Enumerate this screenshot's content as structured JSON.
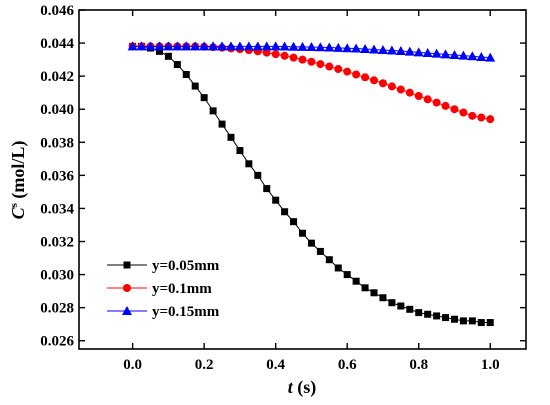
{
  "chart_data": {
    "type": "line",
    "xlabel": {
      "var": "t",
      "unit": " (s)"
    },
    "ylabel": {
      "var": "C",
      "sup": "s",
      "unit": " (mol/L)"
    },
    "xlim": [
      -0.15,
      1.1
    ],
    "ylim": [
      0.0255,
      0.046
    ],
    "x_ticks": [
      "0.0",
      "0.2",
      "0.4",
      "0.6",
      "0.8",
      "1.0"
    ],
    "y_ticks": [
      "0.026",
      "0.028",
      "0.030",
      "0.032",
      "0.034",
      "0.036",
      "0.038",
      "0.040",
      "0.042",
      "0.044",
      "0.046"
    ],
    "grid": false,
    "legend_position": "bottom-left",
    "series": [
      {
        "name": "y=0.05mm",
        "color": "#000000",
        "marker": "square",
        "x": [
          0.0,
          0.025,
          0.05,
          0.075,
          0.1,
          0.125,
          0.15,
          0.175,
          0.2,
          0.225,
          0.25,
          0.275,
          0.3,
          0.325,
          0.35,
          0.375,
          0.4,
          0.425,
          0.45,
          0.475,
          0.5,
          0.525,
          0.55,
          0.575,
          0.6,
          0.625,
          0.65,
          0.675,
          0.7,
          0.725,
          0.75,
          0.775,
          0.8,
          0.825,
          0.85,
          0.875,
          0.9,
          0.925,
          0.95,
          0.975,
          1.0
        ],
        "y": [
          0.0438,
          0.0438,
          0.0437,
          0.0435,
          0.0432,
          0.0427,
          0.0421,
          0.0414,
          0.0407,
          0.0399,
          0.0391,
          0.0383,
          0.0375,
          0.0367,
          0.036,
          0.0352,
          0.0345,
          0.0338,
          0.0332,
          0.0325,
          0.0319,
          0.0314,
          0.0309,
          0.0304,
          0.03,
          0.0296,
          0.0292,
          0.0289,
          0.0286,
          0.0283,
          0.0281,
          0.0279,
          0.0277,
          0.0276,
          0.0275,
          0.0274,
          0.0273,
          0.0272,
          0.0272,
          0.0271,
          0.0271
        ]
      },
      {
        "name": "y=0.1mm",
        "color": "#ff0000",
        "marker": "circle",
        "x": [
          0.0,
          0.025,
          0.05,
          0.075,
          0.1,
          0.125,
          0.15,
          0.175,
          0.2,
          0.225,
          0.25,
          0.275,
          0.3,
          0.325,
          0.35,
          0.375,
          0.4,
          0.425,
          0.45,
          0.475,
          0.5,
          0.525,
          0.55,
          0.575,
          0.6,
          0.625,
          0.65,
          0.675,
          0.7,
          0.725,
          0.75,
          0.775,
          0.8,
          0.825,
          0.85,
          0.875,
          0.9,
          0.925,
          0.95,
          0.975,
          1.0
        ],
        "y": [
          0.0438,
          0.0438,
          0.0438,
          0.0438,
          0.0438,
          0.0438,
          0.0438,
          0.0438,
          0.04378,
          0.04375,
          0.04372,
          0.04368,
          0.04363,
          0.04357,
          0.0435,
          0.04342,
          0.04333,
          0.04323,
          0.04312,
          0.043,
          0.04287,
          0.04273,
          0.04258,
          0.04243,
          0.04227,
          0.0421,
          0.04193,
          0.04175,
          0.04157,
          0.04138,
          0.04119,
          0.041,
          0.0408,
          0.0406,
          0.0404,
          0.0402,
          0.04,
          0.0398,
          0.0396,
          0.0395,
          0.0394
        ]
      },
      {
        "name": "y=0.15mm",
        "color": "#0000ff",
        "marker": "triangle",
        "x": [
          0.0,
          0.025,
          0.05,
          0.075,
          0.1,
          0.125,
          0.15,
          0.175,
          0.2,
          0.225,
          0.25,
          0.275,
          0.3,
          0.325,
          0.35,
          0.375,
          0.4,
          0.425,
          0.45,
          0.475,
          0.5,
          0.525,
          0.55,
          0.575,
          0.6,
          0.625,
          0.65,
          0.675,
          0.7,
          0.725,
          0.75,
          0.775,
          0.8,
          0.825,
          0.85,
          0.875,
          0.9,
          0.925,
          0.95,
          0.975,
          1.0
        ],
        "y": [
          0.0438,
          0.0438,
          0.0438,
          0.0438,
          0.0438,
          0.0438,
          0.0438,
          0.0438,
          0.0438,
          0.0438,
          0.0438,
          0.0438,
          0.0438,
          0.0438,
          0.0438,
          0.0438,
          0.0438,
          0.04379,
          0.04378,
          0.04377,
          0.04376,
          0.04375,
          0.04373,
          0.04371,
          0.04369,
          0.04367,
          0.04364,
          0.04361,
          0.04358,
          0.04355,
          0.04352,
          0.04348,
          0.04344,
          0.0434,
          0.04336,
          0.04332,
          0.04328,
          0.04324,
          0.0432,
          0.04316,
          0.04312
        ]
      }
    ]
  }
}
